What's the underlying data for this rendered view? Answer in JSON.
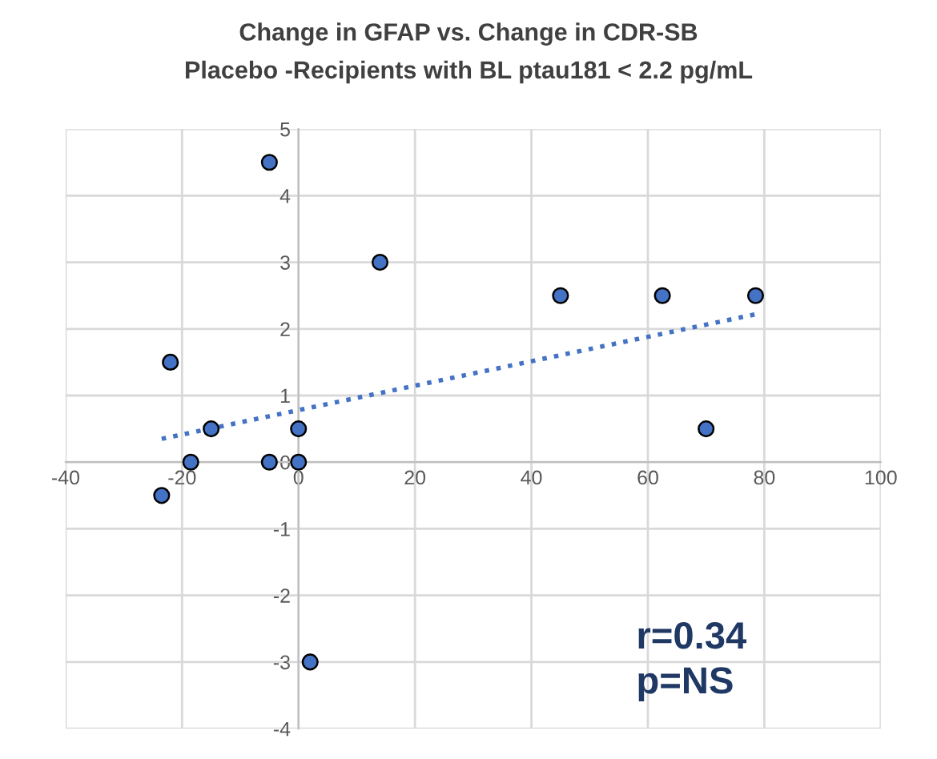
{
  "chart_data": {
    "type": "scatter",
    "title": "Change in GFAP vs. Change in CDR-SB",
    "subtitle": "Placebo -Recipients with BL ptau181 < 2.2 pg/mL",
    "series": [
      {
        "color": "#4472c4",
        "marker": "circle",
        "x": [
          -23.5,
          -22,
          -15,
          -18.5,
          -5,
          0,
          0,
          -5,
          14,
          45,
          62.5,
          78.5,
          70,
          2
        ],
        "values": [
          -0.5,
          1.5,
          0.5,
          0,
          0,
          0.5,
          0,
          4.5,
          3,
          2.5,
          2.5,
          2.5,
          0.5,
          -3
        ]
      },
      {
        "type": "line",
        "color": "#4472c4",
        "line_style": "dotted",
        "x": [
          -23.5,
          78.5
        ],
        "values": [
          0.35,
          2.22
        ]
      }
    ],
    "xlim": [
      -40,
      100
    ],
    "xticks": [
      -40,
      -20,
      0,
      20,
      40,
      60,
      80,
      100
    ],
    "ylim": [
      -4,
      5
    ],
    "yticks": [
      -4,
      -3,
      -2,
      -1,
      0,
      1,
      2,
      3,
      4,
      5
    ],
    "grid": true,
    "annotations": [
      "r=0.34",
      "p=NS"
    ]
  }
}
